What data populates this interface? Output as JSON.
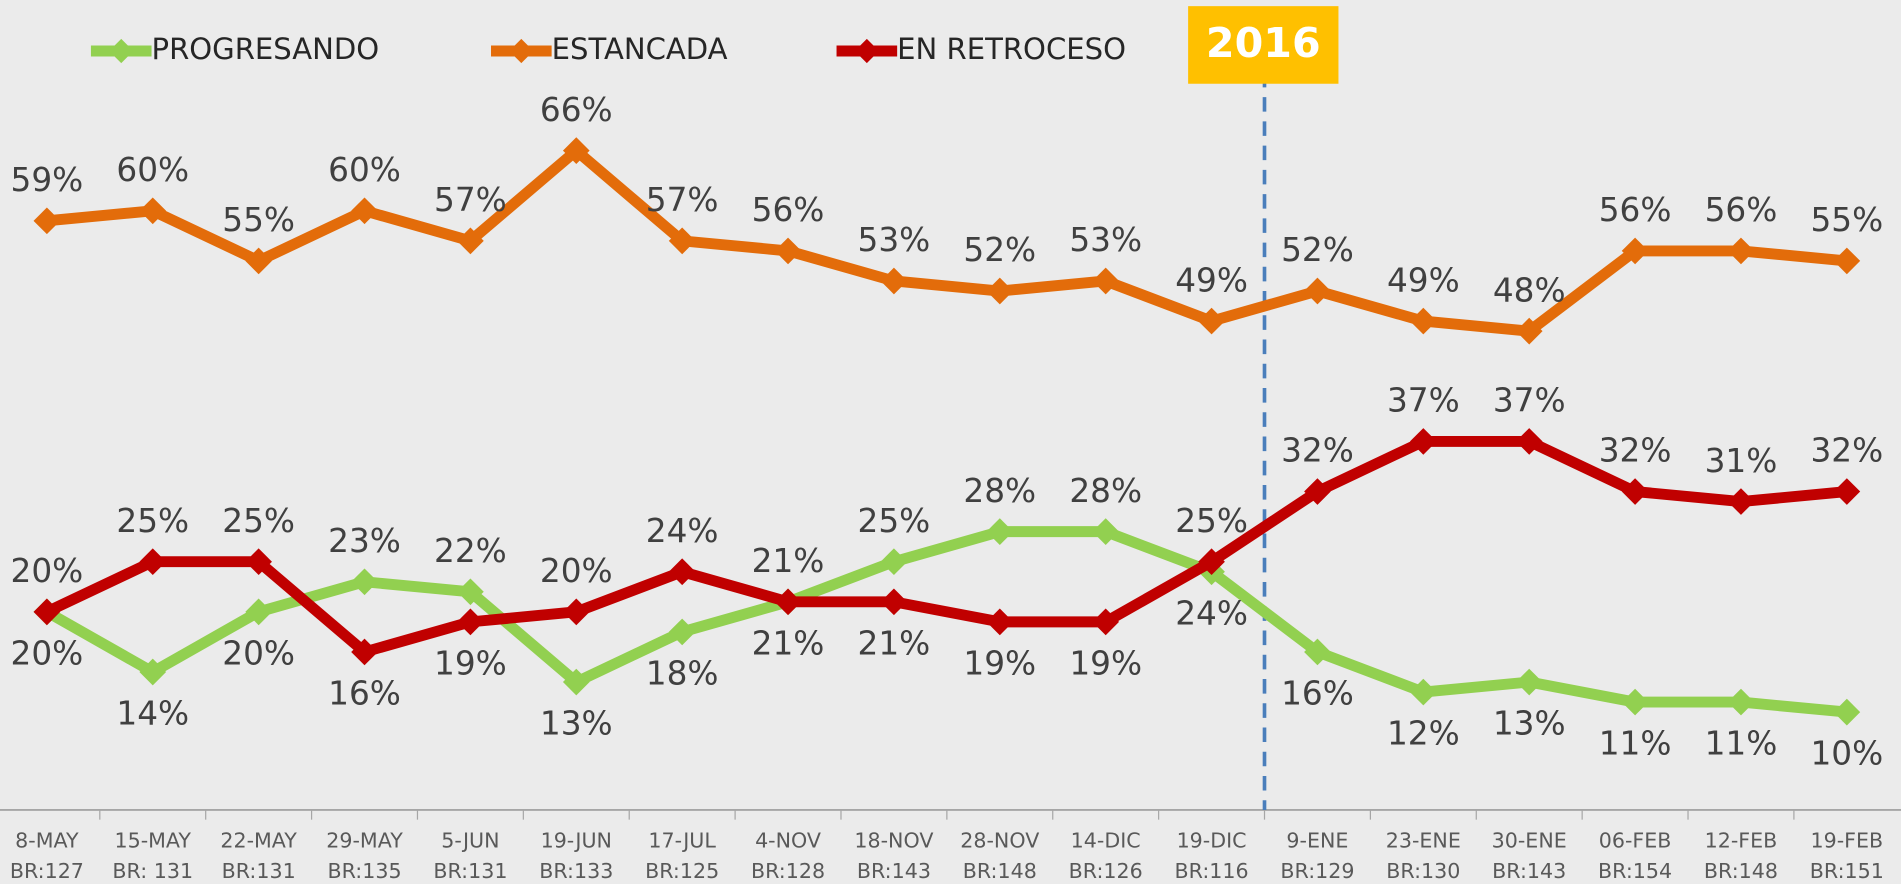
{
  "chart_data": {
    "type": "line",
    "categories": [
      [
        "8-MAY",
        "BR:127"
      ],
      [
        "15-MAY",
        "BR: 131"
      ],
      [
        "22-MAY",
        "BR:131"
      ],
      [
        "29-MAY",
        "BR:135"
      ],
      [
        "5-JUN",
        "BR:131"
      ],
      [
        "19-JUN",
        "BR:133"
      ],
      [
        "17-JUL",
        "BR:125"
      ],
      [
        "4-NOV",
        "BR:128"
      ],
      [
        "18-NOV",
        "BR:143"
      ],
      [
        "28-NOV",
        "BR:148"
      ],
      [
        "14-DIC",
        "BR:126"
      ],
      [
        "19-DIC",
        "BR:116"
      ],
      [
        "9-ENE",
        "BR:129"
      ],
      [
        "23-ENE",
        "BR:130"
      ],
      [
        "30-ENE",
        "BR:143"
      ],
      [
        "06-FEB",
        "BR:154"
      ],
      [
        "12-FEB",
        "BR:148"
      ],
      [
        "19-FEB",
        "BR:151"
      ]
    ],
    "series": [
      {
        "name": "PROGRESANDO",
        "color": "#92d050",
        "values": [
          20,
          14,
          20,
          23,
          22,
          13,
          18,
          21,
          25,
          28,
          28,
          24,
          16,
          12,
          13,
          11,
          11,
          10
        ],
        "value_labels": [
          "20%",
          "14%",
          "20%",
          "23%",
          "22%",
          "13%",
          "18%",
          "21%",
          "25%",
          "28%",
          "28%",
          "24%",
          "16%",
          "12%",
          "13%",
          "11%",
          "11%",
          "10%"
        ]
      },
      {
        "name": "ESTANCADA",
        "color": "#e36c0a",
        "values": [
          59,
          60,
          55,
          60,
          57,
          66,
          57,
          56,
          53,
          52,
          53,
          49,
          52,
          49,
          48,
          56,
          56,
          55
        ],
        "value_labels": [
          "59%",
          "60%",
          "55%",
          "60%",
          "57%",
          "66%",
          "57%",
          "56%",
          "53%",
          "52%",
          "53%",
          "49%",
          "52%",
          "49%",
          "48%",
          "56%",
          "56%",
          "55%"
        ]
      },
      {
        "name": "EN RETROCESO",
        "color": "#c00000",
        "values": [
          20,
          25,
          25,
          16,
          19,
          20,
          24,
          21,
          21,
          19,
          19,
          25,
          32,
          37,
          37,
          32,
          31,
          32
        ],
        "value_labels": [
          "20%",
          "25%",
          "25%",
          "16%",
          "19%",
          "20%",
          "24%",
          "21%",
          "21%",
          "19%",
          "19%",
          "25%",
          "32%",
          "37%",
          "37%",
          "32%",
          "31%",
          "32%"
        ]
      }
    ],
    "ylim": [
      0,
      81
    ],
    "annotation": "2016",
    "legend": "top"
  }
}
